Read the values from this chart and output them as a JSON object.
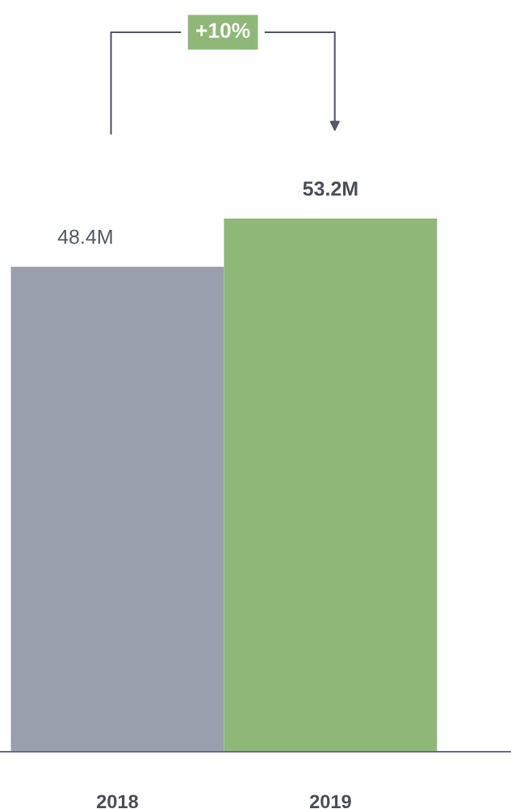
{
  "chart_data": {
    "type": "bar",
    "categories": [
      "2018",
      "2019"
    ],
    "values": [
      48.4,
      53.2
    ],
    "colors": [
      "#9a9fae",
      "#8fb878"
    ],
    "value_labels": [
      "48.4M",
      "53.2M"
    ],
    "annotations": [
      "+10%"
    ],
    "grid": false,
    "legend": false
  }
}
